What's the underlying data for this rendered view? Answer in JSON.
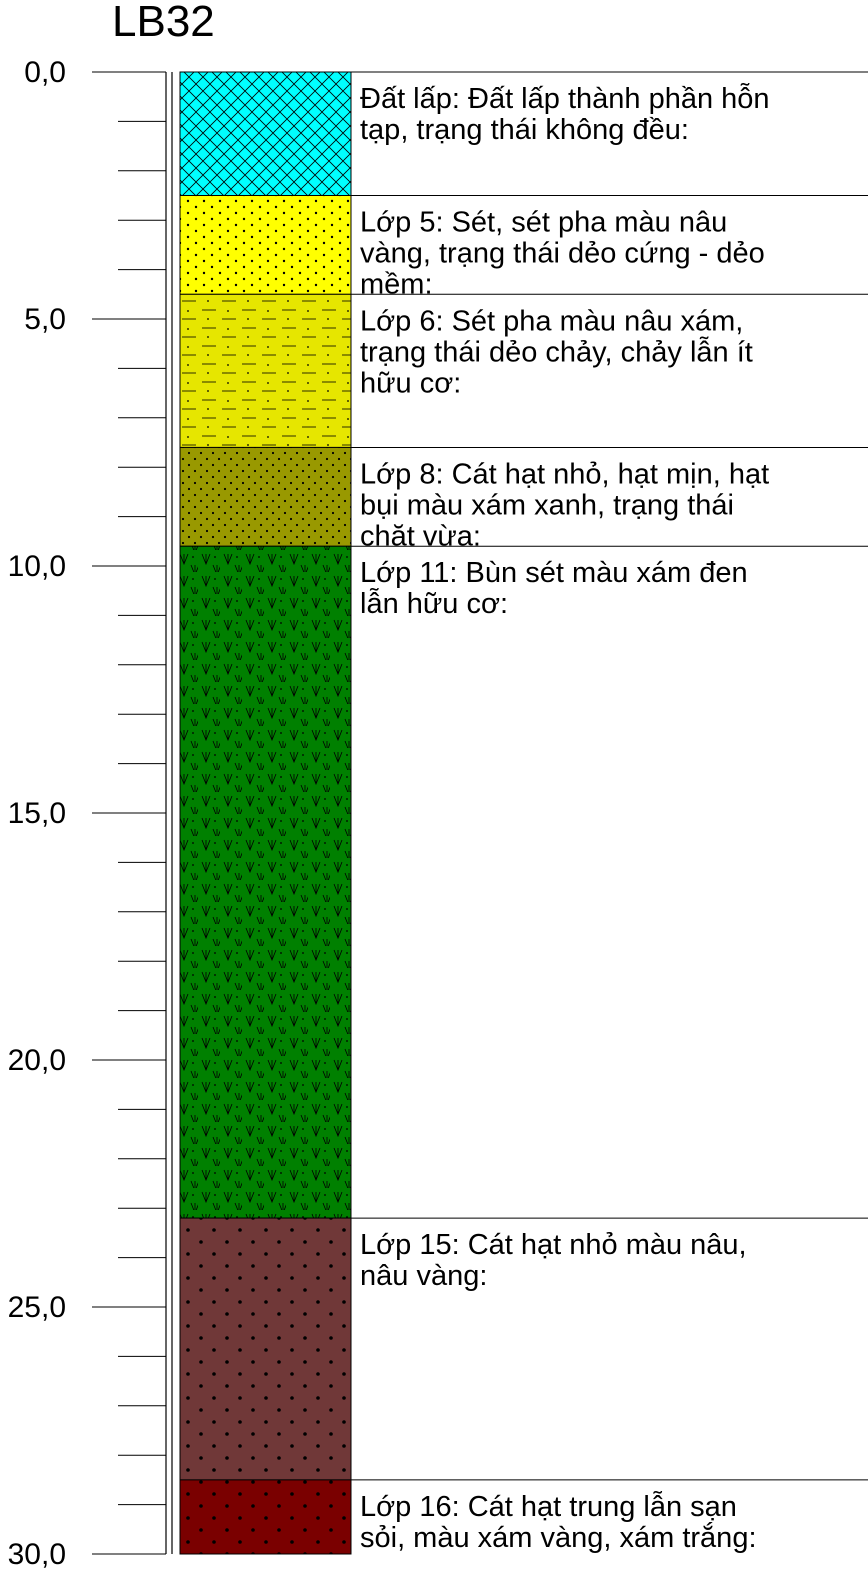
{
  "title": "LB32",
  "depth": {
    "min": 0,
    "max": 30,
    "major_ticks": [
      {
        "value": 0,
        "label": "0,0"
      },
      {
        "value": 5,
        "label": "5,0"
      },
      {
        "value": 10,
        "label": "10,0"
      },
      {
        "value": 15,
        "label": "15,0"
      },
      {
        "value": 20,
        "label": "20,0"
      },
      {
        "value": 25,
        "label": "25,0"
      },
      {
        "value": 30,
        "label": "30,0"
      }
    ],
    "minor_step": 1
  },
  "layers": [
    {
      "top": 0.0,
      "bottom": 2.5,
      "pattern": "crosshatch",
      "fill": "#00ffff",
      "lines": [
        "Đất lấp: Đất lấp thành phần hỗn",
        "tạp, trạng thái không đều:"
      ]
    },
    {
      "top": 2.5,
      "bottom": 4.5,
      "pattern": "dots",
      "fill": "#ffff00",
      "lines": [
        "Lớp 5: Sét, sét pha màu nâu",
        "vàng, trạng thái dẻo cứng - dẻo",
        "mềm:"
      ]
    },
    {
      "top": 4.5,
      "bottom": 7.6,
      "pattern": "dash-dots",
      "fill": "#e6e600",
      "lines": [
        "Lớp 6: Sét pha màu nâu xám,",
        "trạng thái dẻo chảy, chảy lẫn ít",
        "hữu cơ:"
      ]
    },
    {
      "top": 7.6,
      "bottom": 9.6,
      "pattern": "dense-dots",
      "fill": "#999900",
      "lines": [
        "Lớp 8: Cát hạt nhỏ, hạt mịn, hạt",
        "bụi màu xám xanh, trạng thái",
        "chặt vừa:"
      ]
    },
    {
      "top": 9.6,
      "bottom": 23.2,
      "pattern": "marsh",
      "fill": "#008000",
      "lines": [
        "Lớp 11: Bùn sét màu xám đen",
        "lẫn hữu cơ:"
      ]
    },
    {
      "top": 23.2,
      "bottom": 28.5,
      "pattern": "sparse-dots",
      "fill": "#703838",
      "lines": [
        "Lớp 15: Cát hạt nhỏ màu nâu,",
        "nâu vàng:"
      ]
    },
    {
      "top": 28.5,
      "bottom": 30.0,
      "pattern": "sparse-dots",
      "fill": "#7a0000",
      "lines": [
        "Lớp 16: Cát hạt trung lẫn sạn",
        "sỏi, màu xám vàng, xám trắng:"
      ]
    }
  ]
}
